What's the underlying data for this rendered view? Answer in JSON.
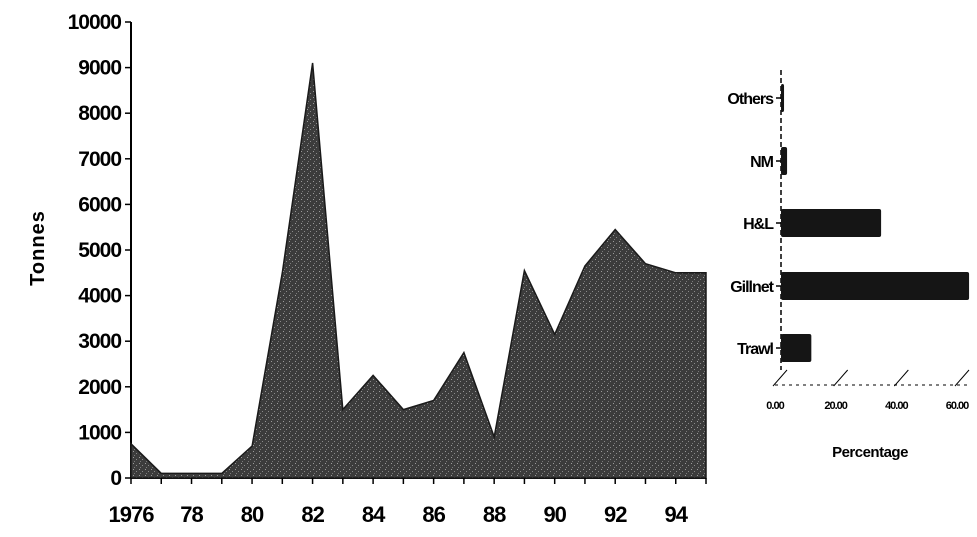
{
  "chart_data": [
    {
      "type": "area",
      "title": "",
      "xlabel": "",
      "ylabel": "Tonnes",
      "ylim": [
        0,
        10000
      ],
      "xlim": [
        1976,
        1995
      ],
      "y_ticks": [
        "0",
        "1000",
        "2000",
        "3000",
        "4000",
        "5000",
        "6000",
        "7000",
        "8000",
        "9000",
        "10000"
      ],
      "x_ticks": [
        {
          "x": 1976,
          "label": "1976"
        },
        {
          "x": 1978,
          "label": "78"
        },
        {
          "x": 1980,
          "label": "80"
        },
        {
          "x": 1982,
          "label": "82"
        },
        {
          "x": 1984,
          "label": "84"
        },
        {
          "x": 1986,
          "label": "86"
        },
        {
          "x": 1988,
          "label": "88"
        },
        {
          "x": 1990,
          "label": "90"
        },
        {
          "x": 1992,
          "label": "92"
        },
        {
          "x": 1994,
          "label": "94"
        }
      ],
      "x": [
        1976,
        1977,
        1978,
        1979,
        1980,
        1981,
        1982,
        1983,
        1984,
        1985,
        1986,
        1987,
        1988,
        1989,
        1990,
        1991,
        1992,
        1993,
        1994,
        1995
      ],
      "series": [
        {
          "values": [
            750,
            100,
            100,
            100,
            700,
            4500,
            9100,
            1500,
            2250,
            1500,
            1700,
            2750,
            900,
            4550,
            3150,
            4650,
            5450,
            4700,
            4500,
            4500
          ]
        }
      ],
      "colors": {
        "fill": "#3a3a3a",
        "axis": "#000000"
      }
    },
    {
      "type": "bar",
      "orientation": "horizontal",
      "xlabel": "Percentage",
      "categories": [
        "Trawl",
        "Gillnet",
        "H&L",
        "NM",
        "Others"
      ],
      "values": [
        10,
        62,
        33,
        2,
        1
      ],
      "xlim": [
        0,
        60
      ],
      "x_ticks": [
        {
          "x": 0,
          "label": "0.00"
        },
        {
          "x": 20,
          "label": "20.00"
        },
        {
          "x": 40,
          "label": "40.00"
        },
        {
          "x": 60,
          "label": "60.00"
        }
      ],
      "colors": {
        "fill": "#151515"
      }
    }
  ]
}
